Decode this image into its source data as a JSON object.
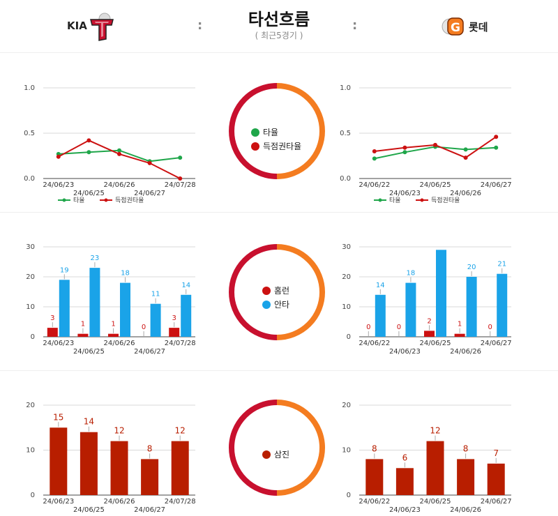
{
  "header": {
    "title": "타선흐름",
    "subtitle": "( 최근5경기 )",
    "colon": ":",
    "home_team": {
      "name": "KIA",
      "color": "#c8102e"
    },
    "away_team": {
      "name": "롯데",
      "color": "#f47c20"
    }
  },
  "colors": {
    "home": "#c8102e",
    "away": "#f47c20",
    "hit": "#1aa3e8",
    "hr": "#cc1111",
    "avg": "#1fa64a",
    "risp": "#cc1111",
    "so": "#b81e00"
  },
  "chart_data": [
    {
      "id": "avg",
      "type": "line",
      "team": "KIA",
      "x": [
        "24/06/23",
        "24/06/25",
        "24/06/26",
        "24/06/27",
        "24/07/28"
      ],
      "series": [
        {
          "name": "타율",
          "values": [
            0.27,
            0.29,
            0.31,
            0.19,
            0.23
          ]
        },
        {
          "name": "득점권타율",
          "values": [
            0.24,
            0.42,
            0.27,
            0.17,
            0.0
          ]
        }
      ],
      "yticks": [
        "0.0",
        "0.5",
        "1.0"
      ],
      "ylim": [
        0,
        1
      ]
    },
    {
      "id": "avg",
      "type": "line",
      "team": "롯데",
      "x": [
        "24/06/22",
        "24/06/23",
        "24/06/25",
        "24/06/26",
        "24/06/27"
      ],
      "series": [
        {
          "name": "타율",
          "values": [
            0.22,
            0.29,
            0.35,
            0.32,
            0.34
          ]
        },
        {
          "name": "득점권타율",
          "values": [
            0.3,
            0.34,
            0.37,
            0.23,
            0.46
          ]
        }
      ],
      "yticks": [
        "0.0",
        "0.5",
        "1.0"
      ],
      "ylim": [
        0,
        1
      ]
    },
    {
      "id": "hits",
      "type": "bar",
      "team": "KIA",
      "x": [
        "24/06/23",
        "24/06/25",
        "24/06/26",
        "24/06/27",
        "24/07/28"
      ],
      "series": [
        {
          "name": "홈런",
          "values": [
            3,
            1,
            1,
            0,
            3
          ]
        },
        {
          "name": "안타",
          "values": [
            19,
            23,
            18,
            11,
            14
          ]
        }
      ],
      "yticks": [
        "0",
        "10",
        "20",
        "30"
      ],
      "ylim": [
        0,
        30
      ]
    },
    {
      "id": "hits",
      "type": "bar",
      "team": "롯데",
      "x": [
        "24/06/22",
        "24/06/23",
        "24/06/25",
        "24/06/26",
        "24/06/27"
      ],
      "series": [
        {
          "name": "홈런",
          "values": [
            0,
            0,
            2,
            1,
            0
          ]
        },
        {
          "name": "안타",
          "values": [
            14,
            18,
            29,
            20,
            21
          ]
        }
      ],
      "value_labels": [
        [
          "0",
          "0",
          "2",
          "1",
          "0"
        ],
        [
          "14",
          "18",
          "",
          "20",
          "21"
        ]
      ],
      "yticks": [
        "0",
        "10",
        "20",
        "30"
      ],
      "ylim": [
        0,
        30
      ]
    },
    {
      "id": "so",
      "type": "bar",
      "team": "KIA",
      "x": [
        "24/06/23",
        "24/06/25",
        "24/06/26",
        "24/06/27",
        "24/07/28"
      ],
      "series": [
        {
          "name": "삼진",
          "values": [
            15,
            14,
            12,
            8,
            12
          ]
        }
      ],
      "yticks": [
        "0",
        "10",
        "20"
      ],
      "ylim": [
        0,
        20
      ]
    },
    {
      "id": "so",
      "type": "bar",
      "team": "롯데",
      "x": [
        "24/06/22",
        "24/06/23",
        "24/06/25",
        "24/06/26",
        "24/06/27"
      ],
      "series": [
        {
          "name": "삼진",
          "values": [
            8,
            6,
            12,
            8,
            7
          ]
        }
      ],
      "yticks": [
        "0",
        "10",
        "20"
      ],
      "ylim": [
        0,
        20
      ]
    }
  ],
  "legends": {
    "avg": [
      "타율",
      "득점권타율"
    ],
    "hits": [
      "홈런",
      "안타"
    ],
    "so": [
      "삼진"
    ]
  }
}
